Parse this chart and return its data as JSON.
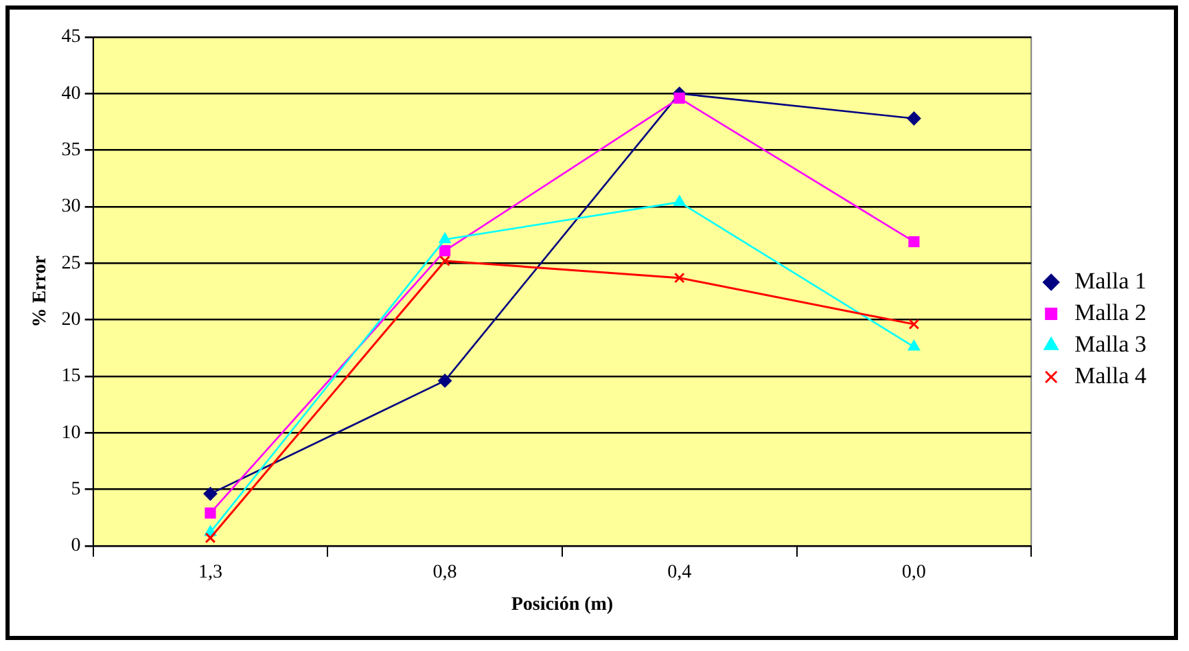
{
  "chart_data": {
    "type": "line",
    "xlabel": "Posición (m)",
    "ylabel": "% Error",
    "categories": [
      "1,3",
      "0,8",
      "0,4",
      "0,0"
    ],
    "series": [
      {
        "name": "Malla 1",
        "color": "#000080",
        "marker": "diamond",
        "values": [
          4.6,
          14.6,
          40,
          37.8
        ]
      },
      {
        "name": "Malla 2",
        "color": "#ff00ff",
        "marker": "square",
        "values": [
          2.9,
          26.1,
          39.6,
          26.9
        ]
      },
      {
        "name": "Malla 3",
        "color": "#00ffff",
        "marker": "triangle",
        "values": [
          1.2,
          27.1,
          30.4,
          17.6
        ]
      },
      {
        "name": "Malla 4",
        "color": "#ff0000",
        "marker": "cross",
        "values": [
          0.7,
          25.2,
          23.7,
          19.6
        ]
      }
    ],
    "ylim": [
      0,
      45
    ],
    "yticks": [
      0,
      5,
      10,
      15,
      20,
      25,
      30,
      35,
      40,
      45
    ],
    "grid": "y",
    "legend": "right",
    "line_style": "solid"
  }
}
